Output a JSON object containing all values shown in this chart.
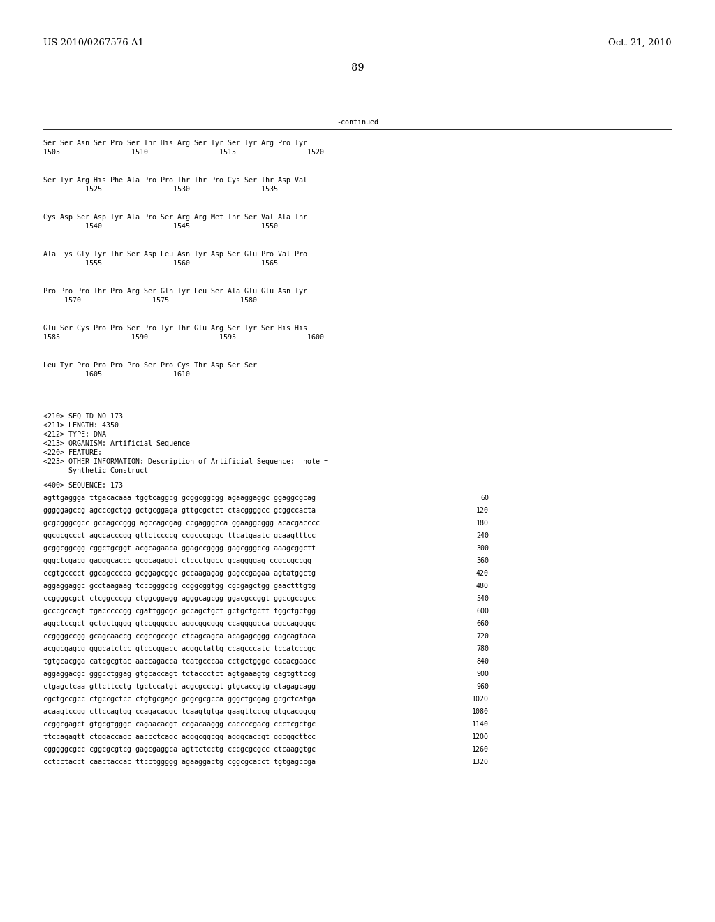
{
  "header_left": "US 2010/0267576 A1",
  "header_right": "Oct. 21, 2010",
  "page_number": "89",
  "continued_label": "-continued",
  "background_color": "#ffffff",
  "text_color": "#000000",
  "font_size_header": 9.5,
  "font_size_page": 10.5,
  "mono_fs": 7.2,
  "aa_pairs": [
    [
      "Ser Ser Asn Ser Pro Ser Thr His Arg Ser Tyr Ser Tyr Arg Pro Tyr",
      "1505                 1510                 1515                 1520"
    ],
    [
      "Ser Tyr Arg His Phe Ala Pro Pro Thr Thr Pro Cys Ser Thr Asp Val",
      "          1525                 1530                 1535"
    ],
    [
      "Cys Asp Ser Asp Tyr Ala Pro Ser Arg Arg Met Thr Ser Val Ala Thr",
      "          1540                 1545                 1550"
    ],
    [
      "Ala Lys Gly Tyr Thr Ser Asp Leu Asn Tyr Asp Ser Glu Pro Val Pro",
      "          1555                 1560                 1565"
    ],
    [
      "Pro Pro Pro Thr Pro Arg Ser Gln Tyr Leu Ser Ala Glu Glu Asn Tyr",
      "     1570                 1575                 1580"
    ],
    [
      "Glu Ser Cys Pro Pro Ser Pro Tyr Thr Glu Arg Ser Tyr Ser His His",
      "1585                 1590                 1595                 1600"
    ],
    [
      "Leu Tyr Pro Pro Pro Pro Ser Pro Cys Thr Asp Ser Ser",
      "          1605                 1610"
    ]
  ],
  "seq_info": [
    "<210> SEQ ID NO 173",
    "<211> LENGTH: 4350",
    "<212> TYPE: DNA",
    "<213> ORGANISM: Artificial Sequence",
    "<220> FEATURE:",
    "<223> OTHER INFORMATION: Description of Artificial Sequence:  note =",
    "      Synthetic Construct"
  ],
  "seq_label": "<400> SEQUENCE: 173",
  "dna_lines": [
    [
      "agttgaggga ttgacacaaa tggtcaggcg gcggcggcgg agaaggaggc ggaggcgcag",
      "60"
    ],
    [
      "gggggagccg agcccgctgg gctgcggaga gttgcgctct ctacggggcc gcggccacta",
      "120"
    ],
    [
      "gcgcgggcgcc gccagccggg agccagcgag ccgagggcca ggaaggcggg acacgacccc",
      "180"
    ],
    [
      "ggcgcgccct agccacccgg gttctccccg ccgcccgcgc ttcatgaatc gcaagtttcc",
      "240"
    ],
    [
      "gcggcggcgg cggctgcggt acgcagaaca ggagccgggg gagcgggccg aaagcggctt",
      "300"
    ],
    [
      "gggctcgacg gagggcaccc gcgcagaggt ctccctggcc gcaggggag ccgccgccgg",
      "360"
    ],
    [
      "ccgtgcccct ggcagcccca gcggagcggc gccaagagag gagccgagaa agtatggctg",
      "420"
    ],
    [
      "aggaggaggc gcctaagaag tcccgggccg ccggcggtgg cgcgagctgg gaactttgtg",
      "480"
    ],
    [
      "ccggggcgct ctcggcccgg ctggcggagg agggcagcgg ggacgccggt ggccgccgcc",
      "540"
    ],
    [
      "gcccgccagt tgacccccgg cgattggcgc gccagctgct gctgctgctt tggctgctgg",
      "600"
    ],
    [
      "aggctccgct gctgctgggg gtccgggccc aggcggcggg ccaggggcca ggccaggggc",
      "660"
    ],
    [
      "ccggggccgg gcagcaaccg ccgccgccgc ctcagcagca acagagcggg cagcagtaca",
      "720"
    ],
    [
      "acggcgagcg gggcatctcc gtcccggacc acggctattg ccagcccatc tccatcccgc",
      "780"
    ],
    [
      "tgtgcacgga catcgcgtac aaccagacca tcatgcccaa cctgctgggc cacacgaacc",
      "840"
    ],
    [
      "aggaggacgc gggcctggag gtgcaccagt tctaccctct agtgaaagtg cagtgttccg",
      "900"
    ],
    [
      "ctgagctcaa gttcttcctg tgctccatgt acgcgcccgt gtgcaccgtg ctagagcagg",
      "960"
    ],
    [
      "cgctgccgcc ctgccgctcc ctgtgcgagc gcgcgcgcca gggctgcgag gcgctcatga",
      "1020"
    ],
    [
      "acaagtccgg cttccagtgg ccagacacgc tcaagtgtga gaagttcccg gtgcacggcg",
      "1080"
    ],
    [
      "ccggcgagct gtgcgtgggc cagaacacgt ccgacaaggg caccccgacg ccctcgctgc",
      "1140"
    ],
    [
      "ttccagagtt ctggaccagc aaccctcagc acggcggcgg agggcaccgt ggcggcttcc",
      "1200"
    ],
    [
      "cgggggcgcc cggcgcgtcg gagcgaggca agttctcctg cccgcgcgcc ctcaaggtgc",
      "1260"
    ],
    [
      "cctcctacct caactaccac ttcctggggg agaaggactg cggcgcacct tgtgagccga",
      "1320"
    ]
  ]
}
